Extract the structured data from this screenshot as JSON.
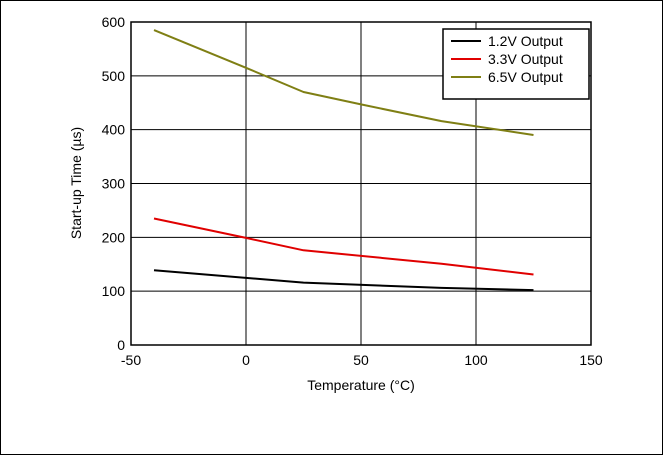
{
  "chart_data": {
    "type": "line",
    "title": "",
    "xlabel": "Temperature (°C)",
    "ylabel": "Start-up Time (µs)",
    "xlim": [
      -50,
      150
    ],
    "ylim": [
      0,
      600
    ],
    "xticks": [
      -50,
      0,
      50,
      100,
      150
    ],
    "yticks": [
      0,
      100,
      200,
      300,
      400,
      500,
      600
    ],
    "xtick_labels": [
      "-50",
      "0",
      "50",
      "100",
      "150"
    ],
    "ytick_labels": [
      "0",
      "100",
      "200",
      "300",
      "400",
      "500",
      "600"
    ],
    "grid": true,
    "legend_position": "top-right",
    "series": [
      {
        "name": "1.2V Output",
        "color": "#000000",
        "x": [
          -40,
          25,
          85,
          125
        ],
        "y": [
          139,
          116,
          106,
          102
        ]
      },
      {
        "name": "3.3V Output",
        "color": "#e00000",
        "x": [
          -40,
          0,
          25,
          85,
          125
        ],
        "y": [
          235,
          199,
          176,
          151,
          131
        ]
      },
      {
        "name": "6.5V Output",
        "color": "#7f7f14",
        "x": [
          -40,
          0,
          25,
          50,
          85,
          125
        ],
        "y": [
          585,
          515,
          470,
          447,
          416,
          390
        ]
      }
    ]
  }
}
